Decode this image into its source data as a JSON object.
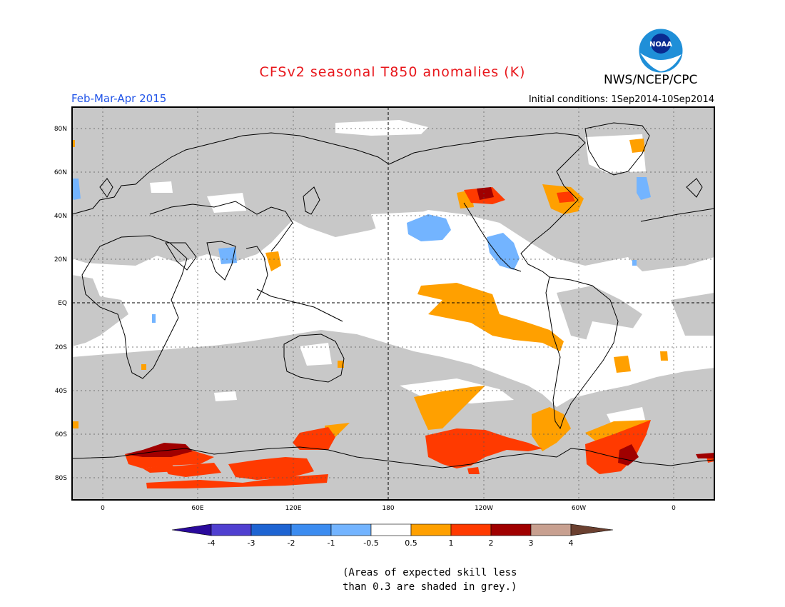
{
  "header": {
    "title": "CFSv2 seasonal T850 anomalies (K)",
    "season": "Feb-Mar-Apr 2015",
    "initial_conditions": "Initial conditions: 1Sep2014-10Sep2014",
    "agency": "NWS/NCEP/CPC",
    "logo_text": "NOAA"
  },
  "colors": {
    "title": "#e8161b",
    "season": "#2255e8",
    "skill_grey": "#c8c8c8",
    "pos_05_1": "#ffa000",
    "pos_1_2": "#ff3a00",
    "pos_2_3": "#a00000",
    "neg_05_1": "#73b4ff",
    "coast": "#000000"
  },
  "map": {
    "lat_labels": [
      "80N",
      "60N",
      "40N",
      "20N",
      "EQ",
      "20S",
      "40S",
      "60S",
      "80S"
    ],
    "lon_labels": [
      "0",
      "60E",
      "120E",
      "180",
      "120W",
      "60W",
      "0"
    ]
  },
  "legend": {
    "colors": [
      "#2a0a9c",
      "#5040d0",
      "#1e64d2",
      "#3c8cf0",
      "#73b4ff",
      "#ffffff",
      "#ffa000",
      "#ff3a00",
      "#a00000",
      "#c8a090",
      "#6b4030"
    ],
    "labels": [
      "-4",
      "-3",
      "-2",
      "-1",
      "-0.5",
      "0.5",
      "1",
      "2",
      "3",
      "4"
    ]
  },
  "footnote": {
    "line1": "(Areas of expected skill less",
    "line2": "than 0.3 are shaded in grey.)"
  }
}
